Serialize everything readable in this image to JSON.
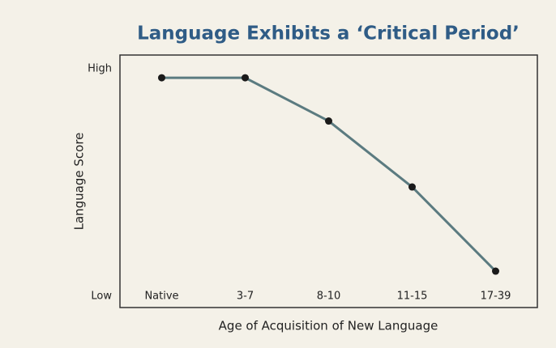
{
  "chart_data": {
    "type": "line",
    "title": "Language Exhibits a ‘Critical Period’",
    "x_label": "Age of Acquisition of New Language",
    "y_label": "Language Score",
    "categories": [
      "Native",
      "3-7",
      "8-10",
      "11-15",
      "17-39"
    ],
    "series": [
      {
        "name": "Language Score",
        "color": "#5b7b80",
        "marker_color": "#1a1a1a",
        "values": [
          96,
          96,
          77,
          48,
          11
        ]
      }
    ],
    "ylim": [
      -5,
      106
    ],
    "yticks": [
      {
        "value": 0,
        "label": "Low"
      },
      {
        "value": 100,
        "label": "High"
      }
    ],
    "grid": false
  }
}
